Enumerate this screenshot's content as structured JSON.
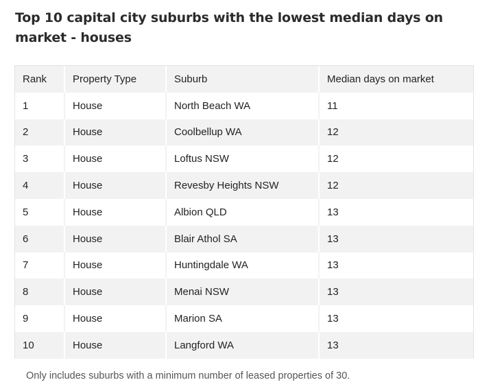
{
  "title": "Top 10 capital city suburbs with the lowest median days on market - houses",
  "footnote": "Only includes suburbs with a minimum number of leased properties of 30.",
  "chart_data": {
    "type": "table",
    "title": "Top 10 capital city suburbs with the lowest median days on market - houses",
    "columns": [
      "Rank",
      "Property Type",
      "Suburb",
      "Median days on market"
    ],
    "rows": [
      [
        "1",
        "House",
        "North Beach WA",
        "11"
      ],
      [
        "2",
        "House",
        "Coolbellup WA",
        "12"
      ],
      [
        "3",
        "House",
        "Loftus NSW",
        "12"
      ],
      [
        "4",
        "House",
        "Revesby Heights NSW",
        "12"
      ],
      [
        "5",
        "House",
        "Albion QLD",
        "13"
      ],
      [
        "6",
        "House",
        "Blair Athol SA",
        "13"
      ],
      [
        "7",
        "House",
        "Huntingdale WA",
        "13"
      ],
      [
        "8",
        "House",
        "Menai NSW",
        "13"
      ],
      [
        "9",
        "House",
        "Marion SA",
        "13"
      ],
      [
        "10",
        "House",
        "Langford WA",
        "13"
      ]
    ],
    "colors": {
      "header_bg": "#f2f2f2",
      "stripe_bg": "#f2f2f2",
      "row_bg": "#ffffff",
      "text": "#222222"
    }
  }
}
